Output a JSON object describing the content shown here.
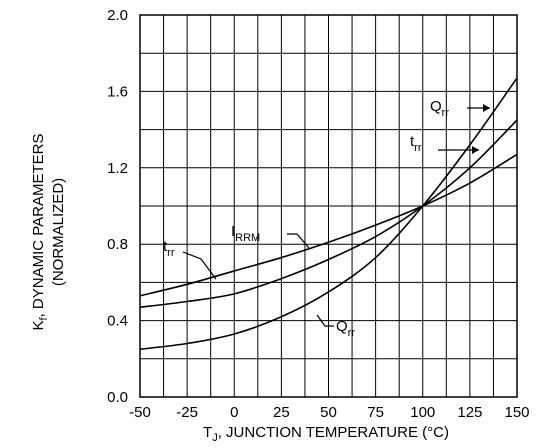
{
  "chart_data": {
    "type": "line",
    "xlabel": {
      "main": "T",
      "sub": "J",
      "rest": ", JUNCTION TEMPERATURE (°C)"
    },
    "ylabel": {
      "line1_main": "K",
      "line1_sub": "f",
      "line1_rest": ", DYNAMIC PARAMETERS",
      "line2": "(NORMALIZED)"
    },
    "xlim": [
      -50,
      150
    ],
    "ylim": [
      0.0,
      2.0
    ],
    "x_ticks": [
      -50,
      -25,
      0,
      25,
      50,
      75,
      100,
      125,
      150
    ],
    "x_tick_labels": [
      "-50",
      "-25",
      "0",
      "25",
      "50",
      "75",
      "100",
      "125",
      "150"
    ],
    "y_ticks": [
      0.0,
      0.4,
      0.8,
      1.2,
      1.6,
      2.0
    ],
    "y_tick_labels": [
      "0.0",
      "0.4",
      "0.8",
      "1.2",
      "1.6",
      "2.0"
    ],
    "grid": true,
    "series": [
      {
        "name_main": "I",
        "name_sub": "RRM",
        "x": [
          -50,
          -25,
          0,
          25,
          50,
          75,
          100,
          125,
          150
        ],
        "y": [
          0.53,
          0.59,
          0.66,
          0.73,
          0.81,
          0.9,
          1.0,
          1.12,
          1.27
        ]
      },
      {
        "name_main": "t",
        "name_sub": "rr",
        "x": [
          -50,
          -25,
          0,
          25,
          50,
          75,
          100,
          125,
          150
        ],
        "y": [
          0.47,
          0.5,
          0.54,
          0.62,
          0.72,
          0.84,
          1.0,
          1.2,
          1.45
        ]
      },
      {
        "name_main": "Q",
        "name_sub": "rr",
        "x": [
          -50,
          -25,
          0,
          25,
          50,
          75,
          100,
          125,
          150
        ],
        "y": [
          0.25,
          0.28,
          0.33,
          0.42,
          0.55,
          0.73,
          1.0,
          1.32,
          1.67
        ]
      }
    ],
    "annotations": [
      {
        "series": "Qrr",
        "main": "Q",
        "sub": "rr",
        "place": "upper-right"
      },
      {
        "series": "trr",
        "main": "t",
        "sub": "rr",
        "place": "right"
      },
      {
        "series": "IRRM",
        "main": "I",
        "sub": "RRM",
        "place": "middle"
      },
      {
        "series": "trr",
        "main": "t",
        "sub": "rr",
        "place": "left"
      },
      {
        "series": "Qrr",
        "main": "Q",
        "sub": "rr",
        "place": "lower-middle"
      }
    ]
  }
}
